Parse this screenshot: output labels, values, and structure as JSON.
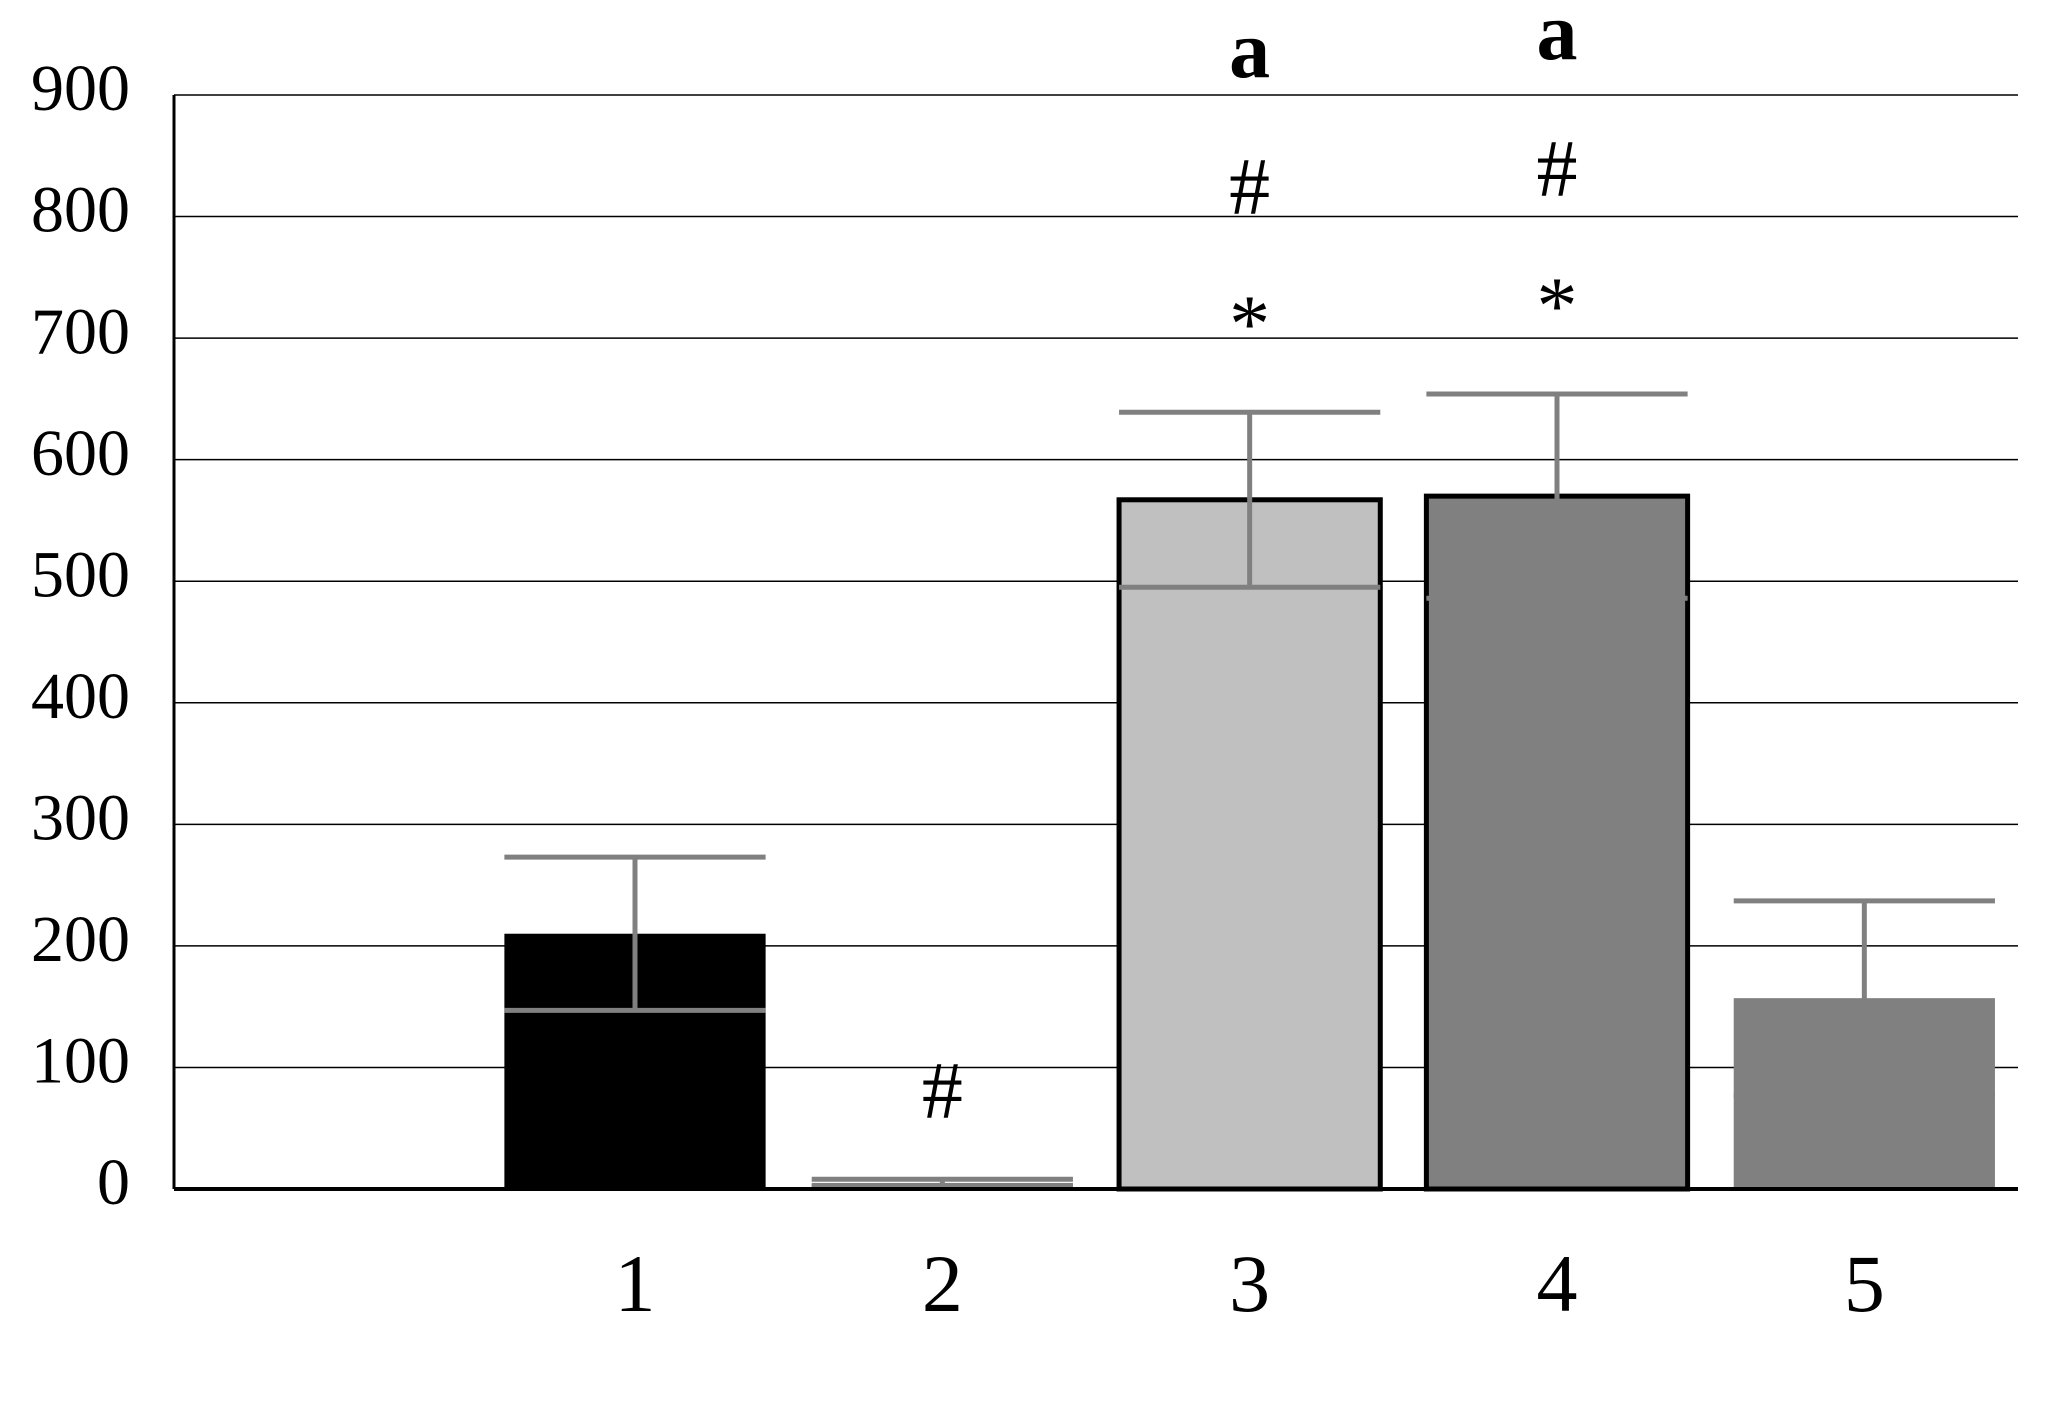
{
  "chart_data": {
    "type": "bar",
    "categories": [
      null,
      "1",
      "2",
      "3",
      "4",
      "5"
    ],
    "values": [
      null,
      210,
      5,
      567,
      570,
      157
    ],
    "errors": [
      null,
      63,
      3,
      72,
      84,
      80
    ],
    "colors": [
      null,
      "#000000",
      "#808080",
      "#c0c0c0",
      "#808080",
      "#808080"
    ],
    "edgecolors": [
      null,
      null,
      null,
      "#000000",
      "#000000",
      null
    ],
    "error_color": "#808080",
    "annotations": [
      null,
      null,
      [
        "#"
      ],
      [
        "*",
        "#",
        "a"
      ],
      [
        "*",
        "#",
        "a"
      ],
      null
    ],
    "ylim": [
      0,
      900
    ],
    "yticks": [
      0,
      100,
      200,
      300,
      400,
      500,
      600,
      700,
      800,
      900
    ],
    "grid": true
  }
}
